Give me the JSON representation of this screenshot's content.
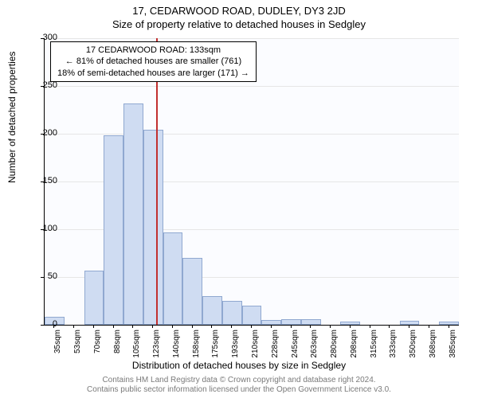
{
  "title_main": "17, CEDARWOOD ROAD, DUDLEY, DY3 2JD",
  "title_sub": "Size of property relative to detached houses in Sedgley",
  "ylabel": "Number of detached properties",
  "xlabel": "Distribution of detached houses by size in Sedgley",
  "chart": {
    "type": "histogram",
    "background_color": "#fbfcff",
    "bar_fill": "#cfdcf2",
    "bar_border": "#90a8d0",
    "grid_color": "#e6e6e6",
    "ref_color": "#c23030",
    "ylim": [
      0,
      300
    ],
    "yticks": [
      0,
      50,
      100,
      150,
      200,
      250,
      300
    ],
    "x_categories": [
      "35sqm",
      "53sqm",
      "70sqm",
      "88sqm",
      "105sqm",
      "123sqm",
      "140sqm",
      "158sqm",
      "175sqm",
      "193sqm",
      "210sqm",
      "228sqm",
      "245sqm",
      "263sqm",
      "280sqm",
      "298sqm",
      "315sqm",
      "333sqm",
      "350sqm",
      "368sqm",
      "385sqm"
    ],
    "values": [
      8,
      0,
      57,
      198,
      232,
      204,
      97,
      70,
      30,
      25,
      20,
      5,
      6,
      6,
      0,
      3,
      0,
      0,
      4,
      0,
      3
    ],
    "ref_index": 5.65,
    "annotation": {
      "lines": [
        "17 CEDARWOOD ROAD: 133sqm",
        "← 81% of detached houses are smaller (761)",
        "18% of semi-detached houses are larger (171) →"
      ]
    }
  },
  "footer_lines": [
    "Contains HM Land Registry data © Crown copyright and database right 2024.",
    "Contains public sector information licensed under the Open Government Licence v3.0."
  ]
}
